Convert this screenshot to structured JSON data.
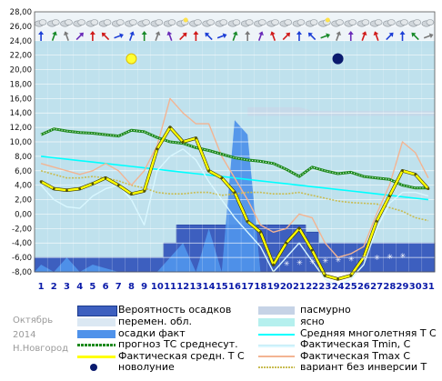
{
  "footer": {
    "month": "Октябрь",
    "year": "2014",
    "station": "Н.Новгород"
  },
  "legend": {
    "prob_precip": "Вероятность осадков",
    "overcast": "пасмурно",
    "partly_cloudy": "перемен. обл.",
    "clear": "ясно",
    "precip_actual": "осадки факт",
    "norm_temp": "Средняя многолетняя Т С",
    "forecast_temp": "прогноз ТС среднесут.",
    "actual_tmin": "Фактическая Tmin, С",
    "actual_mean": "Фактическая средн. Т С",
    "actual_tmax": "Фактическая Tmax С",
    "new_moon": "новолуние",
    "no_inversion": "вариант без инверсии Т"
  },
  "colors": {
    "plot_bg": "#bde0ed",
    "overcast_band": "#c6d3e6",
    "prob_precip": "#3d5fbf",
    "precip_actual": "#4f92ea",
    "norm": "#00ffff",
    "forecast": "#1e8a1e",
    "tmin": "#d9f7ff",
    "mean": "#ffff00",
    "tmax": "#f3b492",
    "no_inversion": "#c8bc52",
    "day_numbers": "#0a1aa8"
  },
  "icons": {
    "weather_row": "cloud-icons",
    "wind_row": "wind-arrow-icons",
    "sun": "sun-icon",
    "moon": "new-moon-icon"
  },
  "chart_data": {
    "type": "line",
    "ylim": [
      -8,
      28
    ],
    "yticks": [
      "28,00",
      "26,00",
      "24,00",
      "22,00",
      "20,00",
      "18,00",
      "16,00",
      "14,00",
      "12,00",
      "10,00",
      "8,00",
      "6,00",
      "4,00",
      "2,00",
      "0,00",
      "-2,00",
      "-4,00",
      "-6,00",
      "-8,00"
    ],
    "x": [
      1,
      2,
      3,
      4,
      5,
      6,
      7,
      8,
      9,
      10,
      11,
      12,
      13,
      14,
      15,
      16,
      17,
      18,
      19,
      20,
      21,
      22,
      23,
      24,
      25,
      26,
      27,
      28,
      29,
      30,
      31
    ],
    "series": [
      {
        "name": "Средняя многолетняя Т С",
        "values": [
          8.0,
          7.8,
          7.6,
          7.4,
          7.2,
          7.0,
          6.8,
          6.6,
          6.4,
          6.2,
          6.0,
          5.8,
          5.6,
          5.4,
          5.2,
          5.0,
          4.8,
          4.6,
          4.4,
          4.2,
          4.0,
          3.8,
          3.6,
          3.4,
          3.2,
          3.0,
          2.8,
          2.6,
          2.4,
          2.2,
          2.0
        ]
      },
      {
        "name": "прогноз ТС среднесут.",
        "values": [
          11.0,
          11.8,
          11.5,
          11.3,
          11.2,
          11.0,
          10.8,
          11.6,
          11.4,
          10.6,
          10.0,
          9.8,
          9.2,
          8.8,
          8.3,
          7.8,
          7.5,
          7.3,
          7.0,
          6.2,
          5.2,
          6.5,
          6.0,
          5.6,
          5.8,
          5.2,
          5.0,
          4.8,
          4.0,
          3.6,
          3.6
        ]
      },
      {
        "name": "Фактическая Tmin, С",
        "values": [
          4.0,
          2.0,
          1.0,
          0.8,
          2.5,
          3.5,
          4.0,
          2.0,
          -1.5,
          6.0,
          8.0,
          9.0,
          7.5,
          4.5,
          2.0,
          -0.5,
          -2.5,
          -4.5,
          -8.0,
          -6.0,
          -4.0,
          -6.5,
          -9.0,
          -10.0,
          -9.0,
          -7.0,
          -2.0,
          1.5,
          3.0,
          3.0,
          2.5
        ]
      },
      {
        "name": "Фактическая средн. Т С",
        "values": [
          4.5,
          3.5,
          3.3,
          3.5,
          4.2,
          5.0,
          4.0,
          2.8,
          3.2,
          9.0,
          12.0,
          10.0,
          10.5,
          6.0,
          5.0,
          3.0,
          -1.0,
          -2.5,
          -7.0,
          -4.0,
          -2.0,
          -5.0,
          -8.5,
          -9.0,
          -8.5,
          -6.0,
          -1.0,
          2.5,
          6.0,
          5.5,
          3.5
        ]
      },
      {
        "name": "Фактическая Tmax С",
        "values": [
          7.0,
          6.5,
          6.0,
          5.5,
          6.0,
          7.0,
          6.0,
          4.0,
          6.0,
          9.5,
          16.0,
          14.0,
          12.5,
          12.5,
          8.0,
          5.0,
          2.0,
          -1.5,
          -2.5,
          -2.0,
          0.0,
          -0.5,
          -4.0,
          -6.0,
          -5.5,
          -4.5,
          0.0,
          4.0,
          10.0,
          8.5,
          5.0
        ]
      },
      {
        "name": "вариант без инверсии Т",
        "values": [
          6.0,
          5.5,
          5.0,
          5.0,
          5.2,
          5.0,
          4.6,
          4.0,
          3.6,
          3.0,
          2.8,
          2.8,
          3.0,
          3.0,
          2.6,
          2.8,
          3.0,
          3.0,
          2.8,
          2.8,
          3.0,
          2.6,
          2.2,
          1.8,
          1.6,
          1.5,
          1.4,
          0.9,
          0.4,
          -0.5,
          -0.9
        ]
      },
      {
        "name": "осадки факт",
        "values": [
          -7.0,
          -8.0,
          -6.0,
          -8.0,
          -7.0,
          -7.5,
          -8.0,
          -8.0,
          -8.0,
          -8.0,
          -6.0,
          -4.0,
          -8.0,
          -2.0,
          -8.0,
          13.0,
          11.0,
          -8.0,
          -8.0,
          -8.0,
          -8.0,
          -8.0,
          -8.0,
          -8.0,
          -8.0,
          -8.0,
          -8.0,
          -8.0,
          -8.0,
          -8.0,
          -8.0
        ]
      },
      {
        "name": "Вероятность осадков",
        "values": [
          -6.0,
          -6.0,
          -6.0,
          -6.0,
          -6.0,
          -6.0,
          -6.0,
          -6.0,
          -6.0,
          -6.0,
          -4.0,
          -1.5,
          -1.5,
          -1.5,
          -1.5,
          -1.5,
          -1.5,
          -1.5,
          -1.5,
          -1.5,
          -1.5,
          -2.5,
          -4.0,
          -4.0,
          -4.0,
          -4.0,
          -4.0,
          -4.0,
          -4.0,
          -4.0,
          -4.0
        ]
      }
    ]
  }
}
